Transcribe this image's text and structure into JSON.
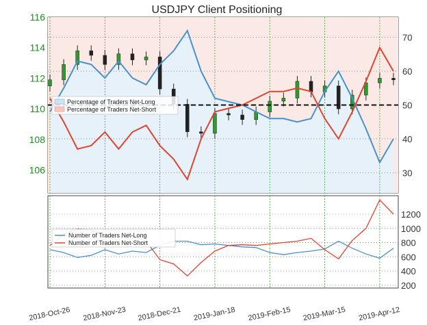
{
  "chart_data": [
    {
      "type": "line",
      "title": "USDJPY Client Positioning",
      "left_axis": {
        "range": [
          104.5,
          116
        ],
        "ticks": [
          "106",
          "108",
          "110",
          "112",
          "114",
          "116"
        ],
        "color": "#1f8a1f"
      },
      "right_axis": {
        "range": [
          24,
          76
        ],
        "ticks": [
          "30",
          "40",
          "50",
          "60",
          "70"
        ]
      },
      "x": [
        "2018-10-26",
        "2018-11-02",
        "2018-11-09",
        "2018-11-16",
        "2018-11-23",
        "2018-11-30",
        "2018-12-07",
        "2018-12-14",
        "2018-12-21",
        "2018-12-28",
        "2019-01-04",
        "2019-01-11",
        "2019-01-18",
        "2019-01-25",
        "2019-02-01",
        "2019-02-08",
        "2019-02-15",
        "2019-02-22",
        "2019-03-01",
        "2019-03-08",
        "2019-03-15",
        "2019-03-22",
        "2019-03-29",
        "2019-04-05",
        "2019-04-12",
        "2019-04-19"
      ],
      "price_close": [
        111.9,
        112.9,
        113.8,
        113.5,
        112.9,
        113.6,
        113.2,
        113.4,
        111.3,
        110.3,
        108.5,
        108.4,
        109.7,
        109.6,
        109.3,
        109.8,
        110.5,
        110.7,
        111.8,
        111.1,
        111.5,
        110.0,
        110.9,
        111.7,
        112.0,
        111.9
      ],
      "series": [
        {
          "name": "Percentage of Traders Net-Long",
          "color": "#4a90c8",
          "values": [
            48,
            55,
            63,
            62,
            58,
            63,
            58,
            56,
            62,
            66,
            72,
            60,
            52,
            51,
            50,
            48,
            46,
            46,
            45,
            46,
            54,
            60,
            52,
            43,
            33,
            40
          ]
        },
        {
          "name": "Percentage of Traders Net-Short",
          "color": "#e0432f",
          "values": [
            52,
            45,
            37,
            38,
            42,
            37,
            42,
            44,
            38,
            34,
            28,
            40,
            48,
            49,
            50,
            52,
            54,
            54,
            55,
            54,
            46,
            40,
            48,
            57,
            67,
            60
          ]
        }
      ],
      "reference_line": 50,
      "legend": "left",
      "grid": true
    },
    {
      "type": "line",
      "right_axis": {
        "range": [
          160,
          1460
        ],
        "ticks": [
          "200",
          "400",
          "600",
          "800",
          "1000",
          "1200"
        ]
      },
      "x": [
        "2018-10-26",
        "2018-11-02",
        "2018-11-09",
        "2018-11-16",
        "2018-11-23",
        "2018-11-30",
        "2018-12-07",
        "2018-12-14",
        "2018-12-21",
        "2018-12-28",
        "2019-01-04",
        "2019-01-11",
        "2019-01-18",
        "2019-01-25",
        "2019-02-01",
        "2019-02-08",
        "2019-02-15",
        "2019-02-22",
        "2019-03-01",
        "2019-03-08",
        "2019-03-15",
        "2019-03-22",
        "2019-03-29",
        "2019-04-05",
        "2019-04-12",
        "2019-04-19"
      ],
      "series": [
        {
          "name": "Number of Traders Net-Long",
          "color": "#4a90c8",
          "values": [
            700,
            660,
            590,
            620,
            700,
            640,
            680,
            660,
            760,
            820,
            820,
            770,
            780,
            760,
            740,
            730,
            660,
            630,
            660,
            680,
            710,
            820,
            720,
            640,
            580,
            720
          ]
        },
        {
          "name": "Number of Traders Net-Short",
          "color": "#e0432f",
          "values": [
            760,
            920,
            990,
            980,
            880,
            880,
            890,
            820,
            560,
            500,
            330,
            520,
            680,
            760,
            770,
            760,
            780,
            800,
            820,
            860,
            700,
            570,
            830,
            1000,
            1400,
            1200
          ]
        }
      ],
      "legend": "left",
      "grid": true
    }
  ],
  "x_tick_labels": [
    "2018-Oct-26",
    "2018-Nov-23",
    "2018-Dec-21",
    "2019-Jan-18",
    "2019-Feb-15",
    "2019-Mar-15",
    "2019-Apr-12"
  ]
}
